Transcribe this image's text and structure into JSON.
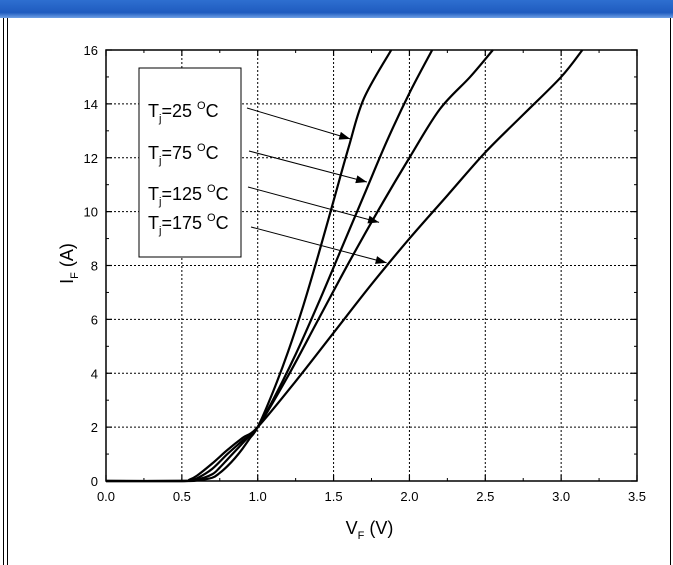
{
  "chart_data": {
    "type": "line",
    "xlabel": {
      "main": "V",
      "sub": "F",
      "unit": " (V)"
    },
    "ylabel": {
      "main": "I",
      "sub": "F",
      "unit": " (A)"
    },
    "xlim": [
      0,
      3.5
    ],
    "ylim": [
      0,
      16
    ],
    "x_ticks": [
      "0.0",
      "0.5",
      "1.0",
      "1.5",
      "2.0",
      "2.5",
      "3.0",
      "3.5"
    ],
    "y_ticks": [
      "0",
      "2",
      "4",
      "6",
      "8",
      "10",
      "12",
      "14",
      "16"
    ],
    "grid": true,
    "series": [
      {
        "name": "Tj=25 °C",
        "label_main": "T",
        "label_sub": "j",
        "label_value": "=25 ",
        "label_sup": "O",
        "label_unit": "C",
        "points": [
          [
            0,
            0
          ],
          [
            0.5,
            0
          ],
          [
            0.6,
            0.02
          ],
          [
            0.7,
            0.12
          ],
          [
            0.75,
            0.3
          ],
          [
            0.8,
            0.55
          ],
          [
            0.85,
            0.85
          ],
          [
            0.9,
            1.2
          ],
          [
            0.95,
            1.6
          ],
          [
            1.0,
            2.0
          ],
          [
            1.1,
            3.3
          ],
          [
            1.2,
            4.8
          ],
          [
            1.3,
            6.5
          ],
          [
            1.4,
            8.4
          ],
          [
            1.5,
            10.4
          ],
          [
            1.6,
            12.4
          ],
          [
            1.7,
            14.2
          ],
          [
            1.88,
            16
          ]
        ]
      },
      {
        "name": "Tj=75 °C",
        "label_main": "T",
        "label_sub": "j",
        "label_value": "=75 ",
        "label_sup": "O",
        "label_unit": "C",
        "points": [
          [
            0,
            0
          ],
          [
            0.5,
            0
          ],
          [
            0.6,
            0.05
          ],
          [
            0.7,
            0.25
          ],
          [
            0.75,
            0.5
          ],
          [
            0.8,
            0.8
          ],
          [
            0.85,
            1.1
          ],
          [
            0.9,
            1.4
          ],
          [
            0.95,
            1.7
          ],
          [
            1.0,
            2.0
          ],
          [
            1.1,
            3.0
          ],
          [
            1.25,
            4.7
          ],
          [
            1.4,
            6.6
          ],
          [
            1.55,
            8.6
          ],
          [
            1.7,
            10.6
          ],
          [
            1.85,
            12.6
          ],
          [
            2.0,
            14.4
          ],
          [
            2.15,
            16
          ]
        ]
      },
      {
        "name": "Tj=125 °C",
        "label_main": "T",
        "label_sub": "j",
        "label_value": "=125 ",
        "label_sup": "O",
        "label_unit": "C",
        "points": [
          [
            0,
            0
          ],
          [
            0.5,
            0
          ],
          [
            0.55,
            0.03
          ],
          [
            0.6,
            0.1
          ],
          [
            0.7,
            0.45
          ],
          [
            0.8,
            1.0
          ],
          [
            0.9,
            1.5
          ],
          [
            1.0,
            2.0
          ],
          [
            1.2,
            3.9
          ],
          [
            1.4,
            6.0
          ],
          [
            1.6,
            8.1
          ],
          [
            1.8,
            10.1
          ],
          [
            2.0,
            12.0
          ],
          [
            2.2,
            13.8
          ],
          [
            2.4,
            15.0
          ],
          [
            2.55,
            16
          ]
        ]
      },
      {
        "name": "Tj=175 °C",
        "label_main": "T",
        "label_sub": "j",
        "label_value": "=175 ",
        "label_sup": "O",
        "label_unit": "C",
        "points": [
          [
            0,
            0
          ],
          [
            0.5,
            0
          ],
          [
            0.55,
            0.05
          ],
          [
            0.6,
            0.2
          ],
          [
            0.7,
            0.65
          ],
          [
            0.8,
            1.15
          ],
          [
            0.9,
            1.6
          ],
          [
            1.0,
            2.0
          ],
          [
            1.25,
            3.7
          ],
          [
            1.5,
            5.5
          ],
          [
            1.75,
            7.3
          ],
          [
            2.0,
            9.0
          ],
          [
            2.25,
            10.6
          ],
          [
            2.5,
            12.2
          ],
          [
            2.75,
            13.6
          ],
          [
            3.0,
            15.0
          ],
          [
            3.14,
            16
          ]
        ]
      }
    ],
    "legend_placement": "top-left",
    "annotations": [
      {
        "series": 0,
        "arrow_to": [
          1.61,
          12.7
        ]
      },
      {
        "series": 1,
        "arrow_to": [
          1.72,
          11.1
        ]
      },
      {
        "series": 2,
        "arrow_to": [
          1.8,
          9.6
        ]
      },
      {
        "series": 3,
        "arrow_to": [
          1.85,
          8.1
        ]
      }
    ]
  }
}
